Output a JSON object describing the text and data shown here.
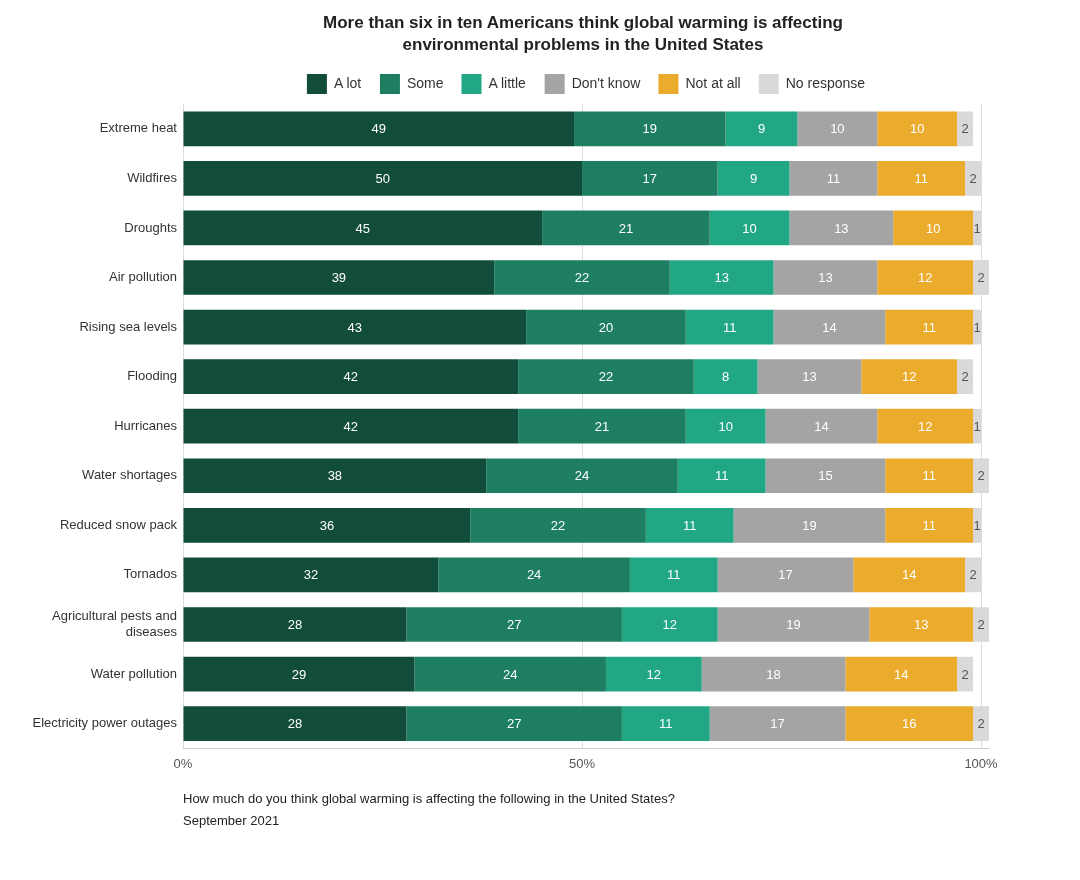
{
  "chart_data": {
    "type": "bar",
    "orientation": "horizontal",
    "stacked": true,
    "title": "More than six in ten Americans think global warming is affecting environmental problems in the United States",
    "categories": [
      "Extreme heat",
      "Wildfires",
      "Droughts",
      "Air pollution",
      "Rising sea levels",
      "Flooding",
      "Hurricanes",
      "Water shortages",
      "Reduced snow pack",
      "Tornados",
      "Agricultural pests and diseases",
      "Water pollution",
      "Electricity power outages"
    ],
    "series": [
      {
        "name": "A lot",
        "color": "#124d3c",
        "values": [
          49,
          50,
          45,
          39,
          43,
          42,
          42,
          38,
          36,
          32,
          28,
          29,
          28
        ]
      },
      {
        "name": "Some",
        "color": "#1e7e62",
        "values": [
          19,
          17,
          21,
          22,
          20,
          22,
          21,
          24,
          22,
          24,
          27,
          24,
          27
        ]
      },
      {
        "name": "A little",
        "color": "#22a784",
        "values": [
          9,
          9,
          10,
          13,
          11,
          8,
          10,
          11,
          11,
          11,
          12,
          12,
          11
        ]
      },
      {
        "name": "Don't know",
        "color": "#a4a4a4",
        "values": [
          10,
          11,
          13,
          13,
          14,
          13,
          14,
          15,
          19,
          17,
          19,
          18,
          17
        ]
      },
      {
        "name": "Not at all",
        "color": "#ebac2d",
        "values": [
          10,
          11,
          10,
          12,
          11,
          12,
          12,
          11,
          11,
          14,
          13,
          14,
          16
        ]
      },
      {
        "name": "No response",
        "color": "#d9d9d9",
        "values": [
          2,
          2,
          1,
          2,
          1,
          2,
          1,
          2,
          1,
          2,
          2,
          2,
          2
        ]
      }
    ],
    "xlim": [
      0,
      101
    ],
    "xticks": [
      {
        "value": 0,
        "label": "0%"
      },
      {
        "value": 50,
        "label": "50%"
      },
      {
        "value": 100,
        "label": "100%"
      }
    ],
    "grid": "x",
    "legend": "top",
    "data_labels": true,
    "annotations": [
      "How much do you think global warming is affecting the following in the United States?",
      "September 2021"
    ]
  }
}
